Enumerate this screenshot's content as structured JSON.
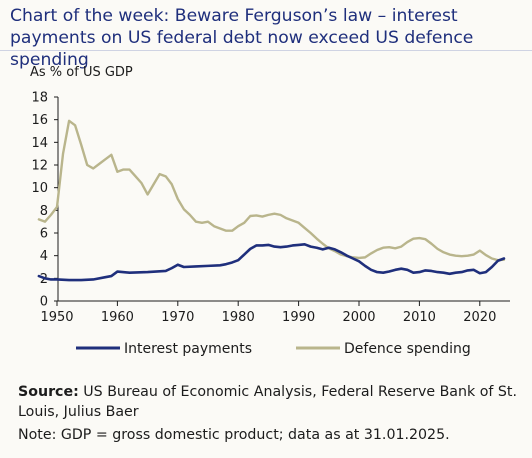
{
  "title": "Chart of the week: Beware Ferguson’s law – interest payments on US federal debt now exceed US defence spending",
  "source_label": "Source:",
  "source_text": "US Bureau of Economic Analysis, Federal Reserve Bank of St. Louis, Julius Baer",
  "note": "Note: GDP = gross domestic product; data as at 31.01.2025.",
  "colors": {
    "interest": "#1f2f7c",
    "defence": "#b9b58c",
    "axis": "#1c1c1c",
    "title": "#1f2f7c"
  },
  "chart_data": {
    "type": "line",
    "title": "",
    "ylabel": "As % of US GDP",
    "xlabel": "",
    "xlim": [
      1950,
      2025
    ],
    "ylim": [
      0,
      18
    ],
    "xticks": [
      1950,
      1960,
      1970,
      1980,
      1990,
      2000,
      2010,
      2020
    ],
    "yticks": [
      0,
      2,
      4,
      6,
      8,
      10,
      12,
      14,
      16,
      18
    ],
    "grid": false,
    "legend_position": "bottom",
    "series": [
      {
        "name": "Interest payments",
        "color": "#1f2f7c",
        "points": [
          [
            1947,
            2.2
          ],
          [
            1948,
            2.0
          ],
          [
            1949,
            1.9
          ],
          [
            1950,
            1.9
          ],
          [
            1952,
            1.85
          ],
          [
            1954,
            1.85
          ],
          [
            1956,
            1.9
          ],
          [
            1958,
            2.1
          ],
          [
            1959,
            2.2
          ],
          [
            1960,
            2.6
          ],
          [
            1962,
            2.5
          ],
          [
            1965,
            2.55
          ],
          [
            1968,
            2.65
          ],
          [
            1969,
            2.9
          ],
          [
            1970,
            3.2
          ],
          [
            1971,
            3.0
          ],
          [
            1973,
            3.05
          ],
          [
            1975,
            3.1
          ],
          [
            1977,
            3.15
          ],
          [
            1978,
            3.25
          ],
          [
            1979,
            3.4
          ],
          [
            1980,
            3.6
          ],
          [
            1981,
            4.1
          ],
          [
            1982,
            4.6
          ],
          [
            1983,
            4.9
          ],
          [
            1984,
            4.9
          ],
          [
            1985,
            4.95
          ],
          [
            1986,
            4.8
          ],
          [
            1987,
            4.75
          ],
          [
            1988,
            4.8
          ],
          [
            1989,
            4.9
          ],
          [
            1990,
            4.95
          ],
          [
            1991,
            5.0
          ],
          [
            1992,
            4.8
          ],
          [
            1993,
            4.7
          ],
          [
            1994,
            4.55
          ],
          [
            1995,
            4.7
          ],
          [
            1996,
            4.55
          ],
          [
            1997,
            4.3
          ],
          [
            1998,
            4.0
          ],
          [
            1999,
            3.75
          ],
          [
            2000,
            3.5
          ],
          [
            2001,
            3.1
          ],
          [
            2002,
            2.75
          ],
          [
            2003,
            2.55
          ],
          [
            2004,
            2.5
          ],
          [
            2005,
            2.6
          ],
          [
            2006,
            2.75
          ],
          [
            2007,
            2.85
          ],
          [
            2008,
            2.75
          ],
          [
            2009,
            2.5
          ],
          [
            2010,
            2.55
          ],
          [
            2011,
            2.7
          ],
          [
            2012,
            2.65
          ],
          [
            2013,
            2.55
          ],
          [
            2014,
            2.5
          ],
          [
            2015,
            2.4
          ],
          [
            2016,
            2.5
          ],
          [
            2017,
            2.55
          ],
          [
            2018,
            2.7
          ],
          [
            2019,
            2.75
          ],
          [
            2020,
            2.45
          ],
          [
            2021,
            2.55
          ],
          [
            2022,
            3.0
          ],
          [
            2023,
            3.55
          ],
          [
            2024,
            3.75
          ]
        ]
      },
      {
        "name": "Defence spending",
        "color": "#b9b58c",
        "points": [
          [
            1947,
            7.2
          ],
          [
            1948,
            7.0
          ],
          [
            1949,
            7.6
          ],
          [
            1950,
            8.3
          ],
          [
            1951,
            13.0
          ],
          [
            1952,
            15.9
          ],
          [
            1953,
            15.5
          ],
          [
            1954,
            13.8
          ],
          [
            1955,
            12.0
          ],
          [
            1956,
            11.7
          ],
          [
            1957,
            12.1
          ],
          [
            1958,
            12.5
          ],
          [
            1959,
            12.9
          ],
          [
            1960,
            11.4
          ],
          [
            1961,
            11.6
          ],
          [
            1962,
            11.6
          ],
          [
            1963,
            11.0
          ],
          [
            1964,
            10.4
          ],
          [
            1965,
            9.4
          ],
          [
            1966,
            10.3
          ],
          [
            1967,
            11.2
          ],
          [
            1968,
            11.0
          ],
          [
            1969,
            10.3
          ],
          [
            1970,
            9.0
          ],
          [
            1971,
            8.1
          ],
          [
            1972,
            7.6
          ],
          [
            1973,
            7.0
          ],
          [
            1974,
            6.9
          ],
          [
            1975,
            7.0
          ],
          [
            1976,
            6.6
          ],
          [
            1977,
            6.4
          ],
          [
            1978,
            6.2
          ],
          [
            1979,
            6.2
          ],
          [
            1980,
            6.6
          ],
          [
            1981,
            6.9
          ],
          [
            1982,
            7.5
          ],
          [
            1983,
            7.55
          ],
          [
            1984,
            7.45
          ],
          [
            1985,
            7.6
          ],
          [
            1986,
            7.7
          ],
          [
            1987,
            7.6
          ],
          [
            1988,
            7.3
          ],
          [
            1989,
            7.1
          ],
          [
            1990,
            6.9
          ],
          [
            1991,
            6.45
          ],
          [
            1992,
            6.0
          ],
          [
            1993,
            5.5
          ],
          [
            1994,
            5.05
          ],
          [
            1995,
            4.65
          ],
          [
            1996,
            4.4
          ],
          [
            1997,
            4.1
          ],
          [
            1998,
            3.95
          ],
          [
            1999,
            3.85
          ],
          [
            2000,
            3.8
          ],
          [
            2001,
            3.85
          ],
          [
            2002,
            4.2
          ],
          [
            2003,
            4.5
          ],
          [
            2004,
            4.7
          ],
          [
            2005,
            4.75
          ],
          [
            2006,
            4.65
          ],
          [
            2007,
            4.8
          ],
          [
            2008,
            5.2
          ],
          [
            2009,
            5.5
          ],
          [
            2010,
            5.55
          ],
          [
            2011,
            5.45
          ],
          [
            2012,
            5.05
          ],
          [
            2013,
            4.6
          ],
          [
            2014,
            4.3
          ],
          [
            2015,
            4.1
          ],
          [
            2016,
            4.0
          ],
          [
            2017,
            3.95
          ],
          [
            2018,
            4.0
          ],
          [
            2019,
            4.1
          ],
          [
            2020,
            4.45
          ],
          [
            2021,
            4.05
          ],
          [
            2022,
            3.75
          ],
          [
            2023,
            3.6
          ],
          [
            2024,
            3.65
          ]
        ]
      }
    ]
  }
}
